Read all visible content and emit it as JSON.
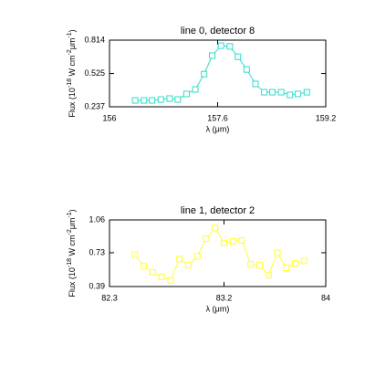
{
  "chart_data": [
    {
      "type": "line",
      "title": "line 0, detector 8",
      "xlabel": "λ (μm)",
      "ylabel": [
        "Flux (10",
        "-18",
        " W cm",
        "-2",
        "μm",
        "-1",
        ")"
      ],
      "x": [
        156.38,
        156.51,
        156.63,
        156.76,
        156.89,
        157.01,
        157.14,
        157.27,
        157.4,
        157.52,
        157.65,
        157.78,
        157.9,
        158.03,
        158.16,
        158.29,
        158.41,
        158.54,
        158.67,
        158.79,
        158.92
      ],
      "series": [
        {
          "color": "#33dcc8",
          "values": [
            0.292,
            0.292,
            0.292,
            0.3,
            0.308,
            0.3,
            0.348,
            0.387,
            0.52,
            0.68,
            0.766,
            0.76,
            0.67,
            0.56,
            0.435,
            0.363,
            0.363,
            0.363,
            0.34,
            0.348,
            0.363
          ]
        }
      ],
      "xlim": [
        156.0,
        159.2
      ],
      "xticks": [
        156.0,
        157.6,
        159.2
      ],
      "ylim": [
        0.237,
        0.814
      ],
      "yticks": [
        0.237,
        0.525,
        0.814
      ]
    },
    {
      "type": "line",
      "title": "line 1, detector 2",
      "xlabel": "λ (μm)",
      "ylabel": [
        "Flux (10",
        "-18",
        " W cm",
        "-2",
        "μm",
        "-1",
        ")"
      ],
      "x": [
        82.5,
        82.57,
        82.64,
        82.71,
        82.78,
        82.85,
        82.92,
        82.99,
        83.06,
        83.13,
        83.2,
        83.27,
        83.34,
        83.41,
        83.48,
        83.55,
        83.62,
        83.69,
        83.76,
        83.83
      ],
      "series": [
        {
          "color": "#ffff33",
          "values": [
            0.71,
            0.595,
            0.533,
            0.488,
            0.452,
            0.667,
            0.604,
            0.694,
            0.872,
            0.979,
            0.828,
            0.845,
            0.854,
            0.613,
            0.604,
            0.506,
            0.729,
            0.578,
            0.622,
            0.649
          ]
        }
      ],
      "xlim": [
        82.3,
        84.0
      ],
      "xticks": [
        82.3,
        83.2,
        84.0
      ],
      "ylim": [
        0.39,
        1.06
      ],
      "yticks": [
        0.39,
        0.73,
        1.06
      ]
    }
  ]
}
